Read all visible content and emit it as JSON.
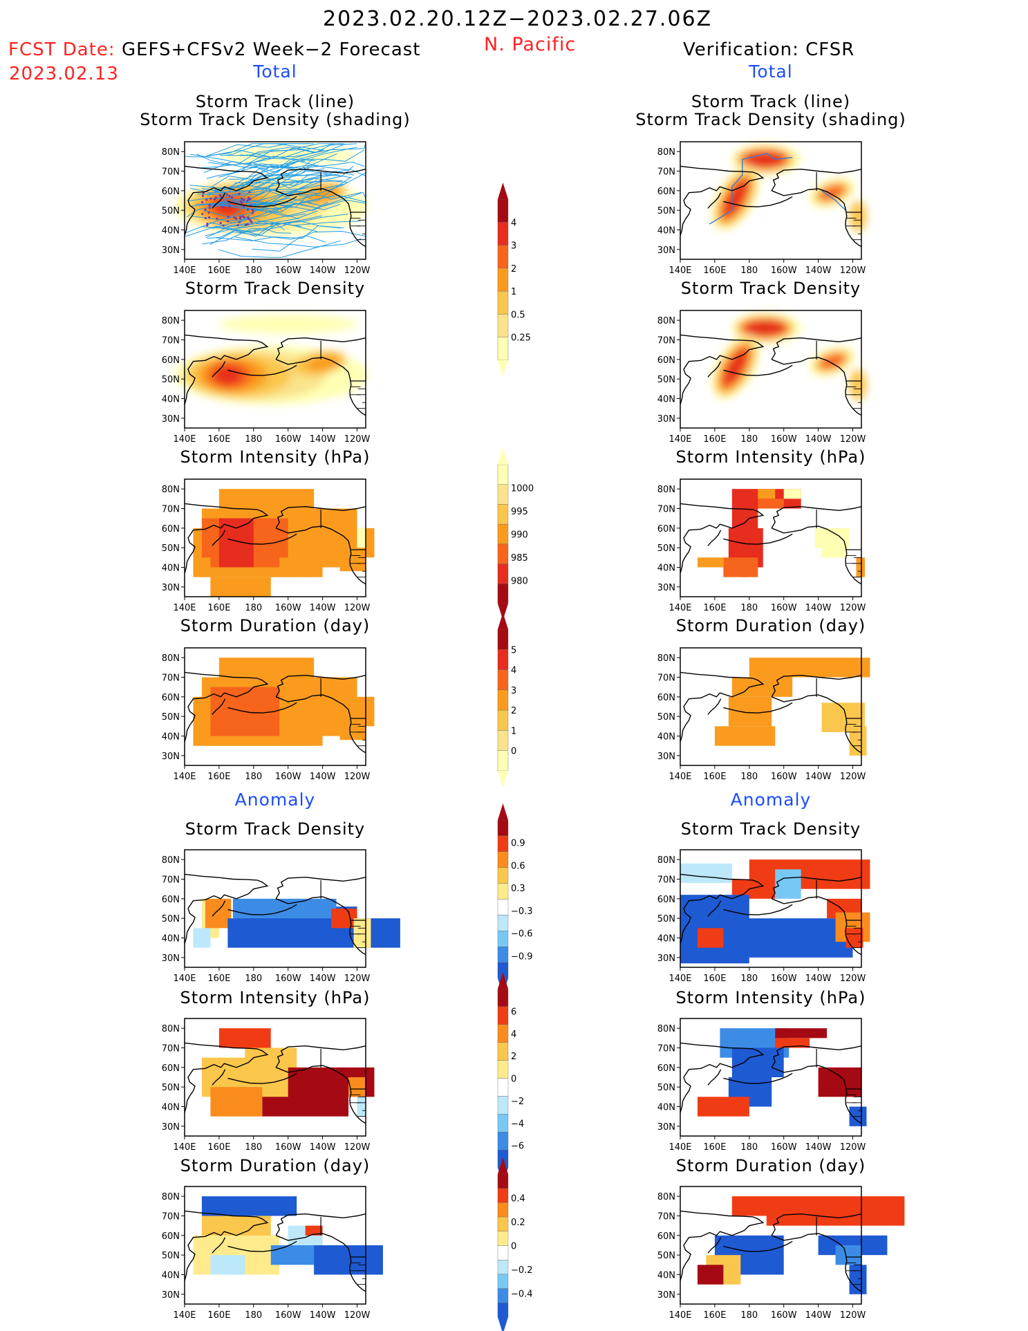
{
  "header": {
    "title": "2023.02.20.12Z−2023.02.27.06Z",
    "region": "N. Pacific",
    "fcst_prefix": "FCST Date:",
    "fcst_model": "GEFS+CFSv2 Week−2 Forecast",
    "fcst_date": "2023.02.13",
    "verification": "Verification: CFSR"
  },
  "colors": {
    "red": "#ff2020",
    "blue": "#1a4cff",
    "track_line": "#1e9be6",
    "scale_total": [
      "#ffffb4",
      "#fae38c",
      "#fac64b",
      "#fa9b1e",
      "#f7641c",
      "#e62d1e",
      "#a50a14"
    ],
    "scale_anom": [
      "#1e5ad2",
      "#3c8ce6",
      "#78c8f5",
      "#bde8fa",
      "#ffffff",
      "#ffeb8c",
      "#fac64b",
      "#fa8c1e",
      "#f03c14",
      "#a50a14"
    ]
  },
  "chart_data": {
    "type": "heatmap",
    "map": {
      "lon_ticks": [
        "140E",
        "160E",
        "180",
        "160W",
        "140W",
        "120W"
      ],
      "lat_ticks": [
        "80N",
        "70N",
        "60N",
        "50N",
        "40N",
        "30N"
      ],
      "lon_range": [
        140,
        245
      ],
      "lat_range": [
        25,
        85
      ]
    },
    "section_labels": {
      "total": "Total",
      "anomaly": "Anomaly"
    },
    "panel_titles": {
      "track_l1": "Storm Track (line)",
      "track_l2": "Storm Track Density (shading)",
      "density": "Storm Track Density",
      "intensity": "Storm Intensity (hPa)",
      "duration": "Storm Duration (day)"
    },
    "colorbars": {
      "density": {
        "labels": [
          "4",
          "3",
          "2",
          "1",
          "0.5",
          "0.25"
        ]
      },
      "intensity": {
        "labels": [
          "1000",
          "995",
          "990",
          "985",
          "980"
        ]
      },
      "duration": {
        "labels": [
          "5",
          "4",
          "3",
          "2",
          "1",
          "0"
        ]
      },
      "density_anom": {
        "labels": [
          "0.9",
          "0.6",
          "0.3",
          "−0.3",
          "−0.6",
          "−0.9"
        ]
      },
      "intensity_anom": {
        "labels": [
          "6",
          "4",
          "2",
          "0",
          "−2",
          "−4",
          "−6"
        ]
      },
      "duration_anom": {
        "labels": [
          "0.4",
          "0.2",
          "0",
          "−0.2",
          "−0.4"
        ]
      }
    }
  }
}
